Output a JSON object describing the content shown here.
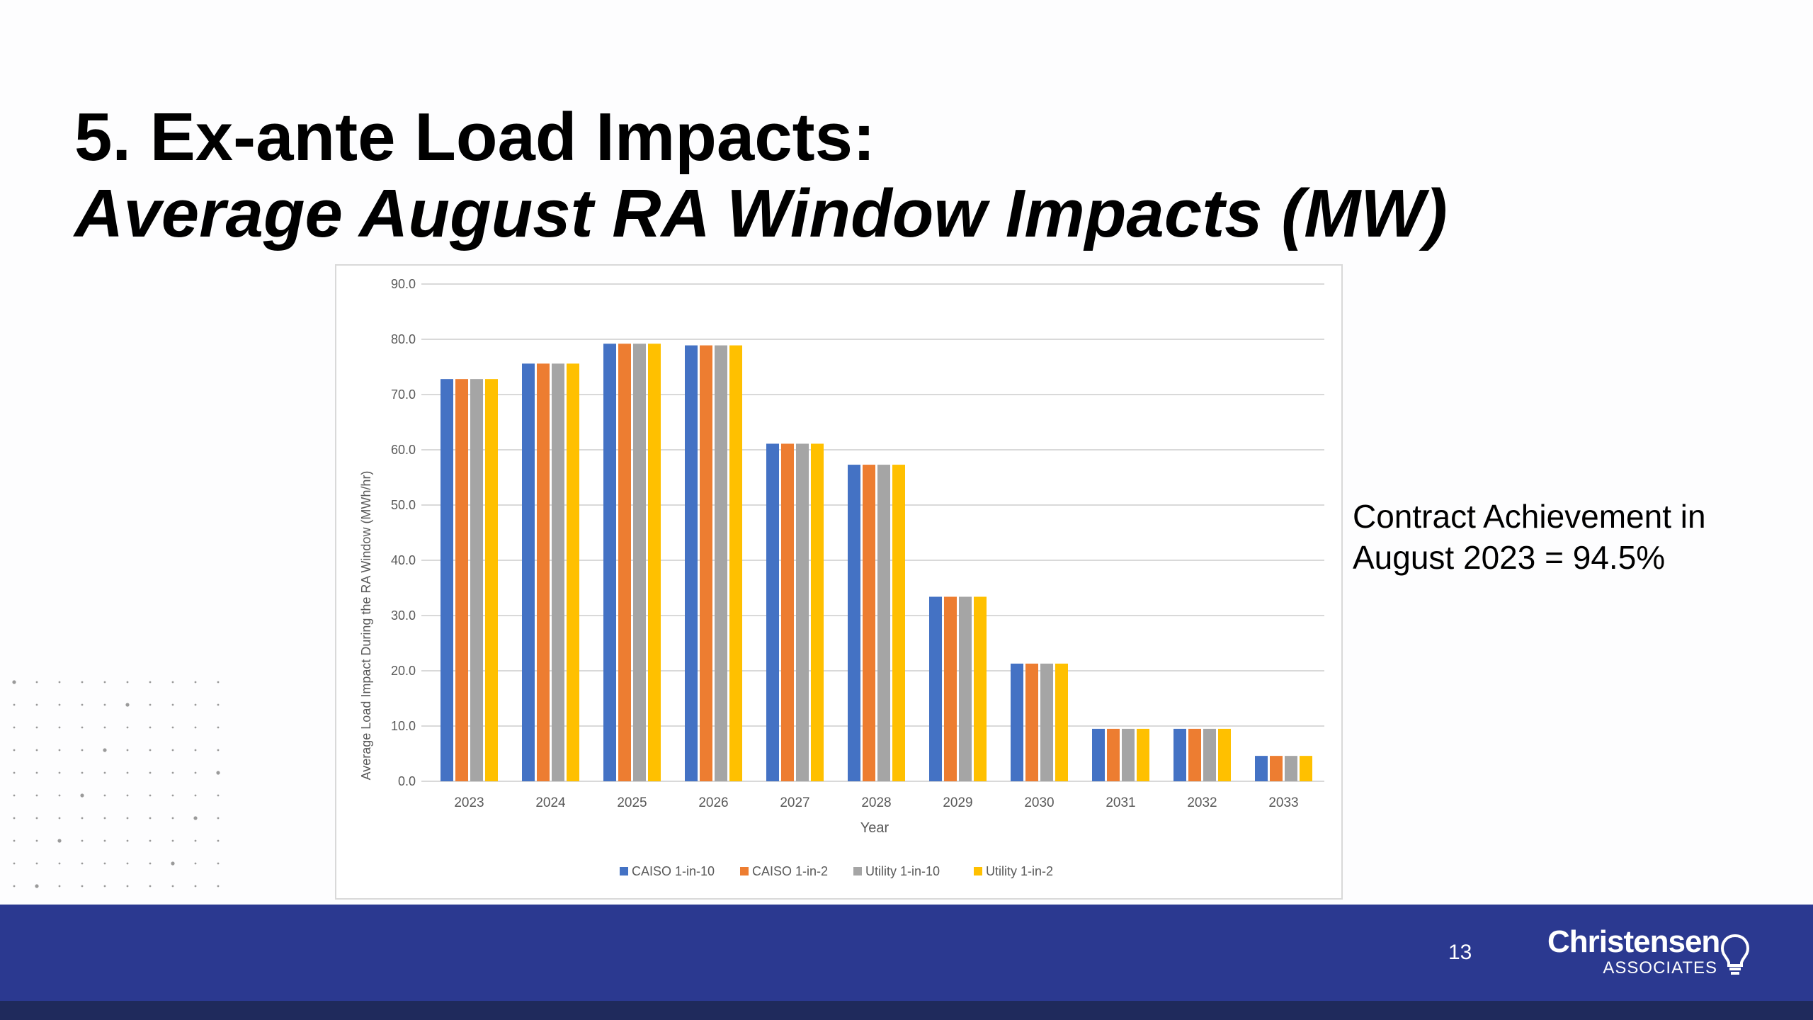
{
  "slide": {
    "title_line1": "5. Ex-ante Load Impacts:",
    "title_line2": "Average August RA Window Impacts (MW)",
    "side_note_line1": "Contract Achievement in",
    "side_note_line2": "August 2023 = 94.5%",
    "page_number": "13",
    "logo_main": "Christensen",
    "logo_sub": "ASSOCIATES",
    "logo_icon": "lightbulb-icon",
    "colors": {
      "footer": "#2b3990",
      "footer_bottom": "#1f2a5c"
    }
  },
  "chart_data": {
    "type": "bar",
    "xlabel": "Year",
    "ylabel": "Average Load Impact During the RA Window (MWh/hr)",
    "ylim": [
      0,
      90
    ],
    "yticks": [
      "0.0",
      "10.0",
      "20.0",
      "30.0",
      "40.0",
      "50.0",
      "60.0",
      "70.0",
      "80.0",
      "90.0"
    ],
    "categories": [
      "2023",
      "2024",
      "2025",
      "2026",
      "2027",
      "2028",
      "2029",
      "2030",
      "2031",
      "2032",
      "2033"
    ],
    "grid": true,
    "legend_position": "bottom",
    "series": [
      {
        "name": "CAISO 1-in-10",
        "color": "#4472c4",
        "values": [
          72.8,
          75.6,
          79.2,
          78.9,
          61.1,
          57.3,
          33.4,
          21.3,
          9.5,
          9.5,
          4.6
        ]
      },
      {
        "name": "CAISO 1-in-2",
        "color": "#ed7d31",
        "values": [
          72.8,
          75.6,
          79.2,
          78.9,
          61.1,
          57.3,
          33.4,
          21.3,
          9.5,
          9.5,
          4.6
        ]
      },
      {
        "name": "Utility 1-in-10",
        "color": "#a5a5a5",
        "values": [
          72.8,
          75.6,
          79.2,
          78.9,
          61.1,
          57.3,
          33.4,
          21.3,
          9.5,
          9.5,
          4.6
        ]
      },
      {
        "name": "Utility 1-in-2",
        "color": "#ffc000",
        "values": [
          72.8,
          75.6,
          79.2,
          78.9,
          61.1,
          57.3,
          33.4,
          21.3,
          9.5,
          9.5,
          4.6
        ]
      }
    ]
  }
}
